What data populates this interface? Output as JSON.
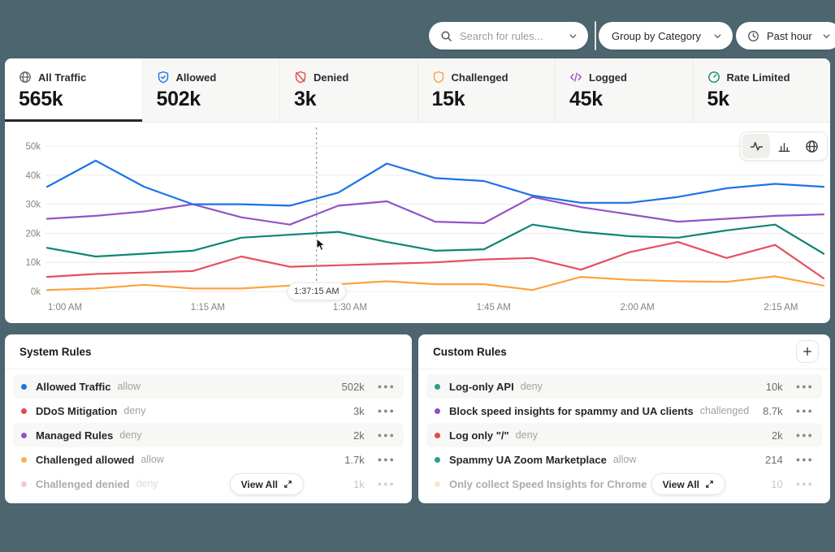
{
  "topbar": {
    "search_placeholder": "Search for rules...",
    "group_by_label": "Group by Category",
    "time_range_label": "Past hour"
  },
  "tabs": [
    {
      "label": "All Traffic",
      "value": "565k",
      "icon": "globe",
      "color": "#5F6368",
      "active": true
    },
    {
      "label": "Allowed",
      "value": "502k",
      "icon": "shield-check",
      "color": "#1A73E8",
      "active": false
    },
    {
      "label": "Denied",
      "value": "3k",
      "icon": "shield-slash",
      "color": "#E5484D",
      "active": false
    },
    {
      "label": "Challenged",
      "value": "15k",
      "icon": "shield",
      "color": "#F2A33C",
      "active": false
    },
    {
      "label": "Logged",
      "value": "45k",
      "icon": "code",
      "color": "#9353C6",
      "active": false
    },
    {
      "label": "Rate Limited",
      "value": "5k",
      "icon": "gauge",
      "color": "#12866F",
      "active": false
    }
  ],
  "chart_data": {
    "type": "line",
    "x_labels": [
      "1:00",
      "1:05",
      "1:10",
      "1:15",
      "1:20",
      "1:25",
      "1:30",
      "1:35",
      "1:40",
      "1:45",
      "1:50",
      "1:55",
      "2:00",
      "2:05",
      "2:10",
      "2:15",
      "2:20"
    ],
    "series": [
      {
        "name": "orange",
        "color": "#FFA23E",
        "values": [
          0.5,
          1,
          2.3,
          1,
          1,
          2,
          2.5,
          3.5,
          2.5,
          2.5,
          0.5,
          5,
          4,
          3.5,
          3.3,
          5.2,
          2
        ]
      },
      {
        "name": "red",
        "color": "#E5505B",
        "values": [
          5,
          6,
          6.5,
          7,
          12,
          8.5,
          9,
          9.5,
          10,
          11,
          11.5,
          7.5,
          13.5,
          17,
          11.5,
          16,
          4.5
        ]
      },
      {
        "name": "teal",
        "color": "#0F8573",
        "values": [
          15,
          12,
          13,
          14,
          18.5,
          19.5,
          20.5,
          17,
          14,
          14.5,
          23,
          20.5,
          19,
          18.5,
          21,
          23,
          13
        ]
      },
      {
        "name": "purple",
        "color": "#9353C6",
        "values": [
          25,
          26,
          27.5,
          30,
          25.5,
          23,
          29.5,
          31,
          24,
          23.5,
          32.5,
          29,
          26.5,
          24,
          25,
          26,
          26.5
        ]
      },
      {
        "name": "blue",
        "color": "#1A73E8",
        "values": [
          36,
          45,
          36,
          30,
          30,
          29.5,
          34,
          44,
          39,
          38,
          33,
          30.5,
          30.5,
          32.5,
          35.5,
          37,
          36
        ]
      }
    ],
    "ylim": [
      0,
      50
    ],
    "yticks": [
      {
        "label": "0k",
        "value": 0
      },
      {
        "label": "10k",
        "value": 10
      },
      {
        "label": "20k",
        "value": 20
      },
      {
        "label": "30k",
        "value": 30
      },
      {
        "label": "40k",
        "value": 40
      },
      {
        "label": "50k",
        "value": 50
      }
    ],
    "xticks": [
      {
        "label": "1:00 AM",
        "f": 0.023
      },
      {
        "label": "1:15 AM",
        "f": 0.207
      },
      {
        "label": "1:30 AM",
        "f": 0.39
      },
      {
        "label": "1:45 AM",
        "f": 0.575
      },
      {
        "label": "2:00 AM",
        "f": 0.76
      },
      {
        "label": "2:15 AM",
        "f": 0.945
      }
    ],
    "grid": true,
    "legend": "none",
    "cursor": {
      "label": "1:37:15 AM",
      "f": 0.347
    }
  },
  "system_rules": {
    "title": "System Rules",
    "view_all_label": "View All",
    "rows": [
      {
        "name": "Allowed Traffic",
        "action": "allow",
        "value": "502k",
        "color": "#1A73E8",
        "faded": false
      },
      {
        "name": "DDoS Mitigation",
        "action": "deny",
        "value": "3k",
        "color": "#E5484D",
        "faded": false
      },
      {
        "name": "Managed Rules",
        "action": "deny",
        "value": "2k",
        "color": "#9353C6",
        "faded": false
      },
      {
        "name": "Challenged allowed",
        "action": "allow",
        "value": "1.7k",
        "color": "#F6B350",
        "faded": false
      },
      {
        "name": "Challenged denied",
        "action": "deny",
        "value": "1k",
        "color": "#E5757D",
        "faded": true
      }
    ]
  },
  "custom_rules": {
    "title": "Custom Rules",
    "view_all_label": "View All",
    "rows": [
      {
        "name": "Log-only API",
        "action": "deny",
        "value": "10k",
        "color": "#2A9D8F",
        "faded": false
      },
      {
        "name": "Block speed insights for spammy and UA clients",
        "action": "challenged",
        "value": "8.7k",
        "color": "#8E4EC6",
        "faded": false
      },
      {
        "name": "Log only \"/\"",
        "action": "deny",
        "value": "2k",
        "color": "#E5484D",
        "faded": false
      },
      {
        "name": "Spammy UA Zoom Marketplace",
        "action": "allow",
        "value": "214",
        "color": "#2A9D8F",
        "faded": false
      },
      {
        "name": "Only collect Speed Insights for Chrome",
        "action": "deny",
        "value": "10",
        "color": "#F2C179",
        "faded": true
      }
    ]
  }
}
